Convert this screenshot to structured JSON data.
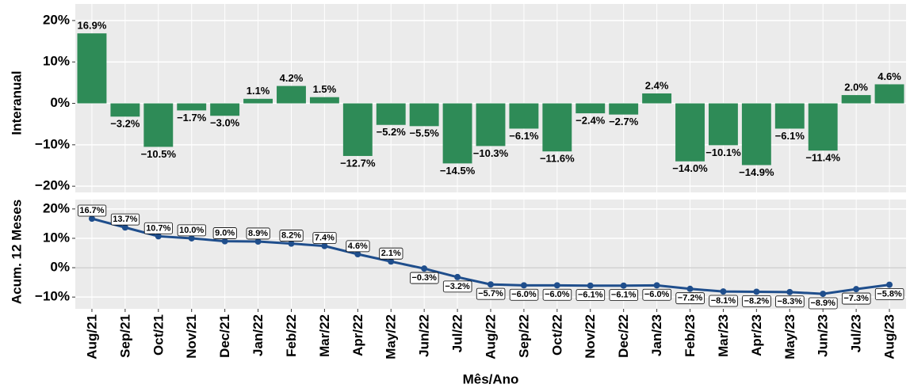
{
  "chart_data": [
    {
      "type": "bar",
      "ylabel": "Interanual",
      "color": "#2e8b57",
      "grid": true,
      "values": [
        16.9,
        -3.2,
        -10.5,
        -1.7,
        -3.0,
        1.1,
        4.2,
        1.5,
        -12.7,
        -5.2,
        -5.5,
        -14.5,
        -10.3,
        -6.1,
        -11.6,
        -2.4,
        -2.7,
        2.4,
        -14.0,
        -10.1,
        -14.9,
        -6.1,
        -11.4,
        2.0,
        4.6
      ],
      "value_labels": [
        "16.9%",
        "−3.2%",
        "−10.5%",
        "−1.7%",
        "−3.0%",
        "1.1%",
        "4.2%",
        "1.5%",
        "−12.7%",
        "−5.2%",
        "−5.5%",
        "−14.5%",
        "−10.3%",
        "−6.1%",
        "−11.6%",
        "−2.4%",
        "−2.7%",
        "2.4%",
        "−14.0%",
        "−10.1%",
        "−14.9%",
        "−6.1%",
        "−11.4%",
        "2.0%",
        "4.6%"
      ],
      "ylim": [
        -21.5,
        24
      ],
      "yticks": [
        {
          "value": -20,
          "label": "−20%"
        },
        {
          "value": -10,
          "label": "−10%"
        },
        {
          "value": 0,
          "label": "0%"
        },
        {
          "value": 10,
          "label": "10%"
        },
        {
          "value": 20,
          "label": "20%"
        }
      ]
    },
    {
      "type": "line",
      "ylabel": "Acum. 12 Meses",
      "xlabel": "Mês/Ano",
      "color": "#1f4e8c",
      "grid": true,
      "categories": [
        "Aug/21",
        "Sep/21",
        "Oct/21",
        "Nov/21",
        "Dec/21",
        "Jan/22",
        "Feb/22",
        "Mar/22",
        "Apr/22",
        "May/22",
        "Jun/22",
        "Jul/22",
        "Aug/22",
        "Sep/22",
        "Oct/22",
        "Nov/22",
        "Dec/22",
        "Jan/23",
        "Feb/23",
        "Mar/23",
        "Apr/23",
        "May/23",
        "Jun/23",
        "Jul/23",
        "Aug/23"
      ],
      "values": [
        16.7,
        13.7,
        10.7,
        10.0,
        9.0,
        8.9,
        8.2,
        7.4,
        4.6,
        2.1,
        -0.3,
        -3.2,
        -5.7,
        -6.0,
        -6.0,
        -6.1,
        -6.1,
        -6.0,
        -7.2,
        -8.1,
        -8.2,
        -8.3,
        -8.9,
        -7.3,
        -5.8
      ],
      "value_labels": [
        "16.7%",
        "13.7%",
        "10.7%",
        "10.0%",
        "9.0%",
        "8.9%",
        "8.2%",
        "7.4%",
        "4.6%",
        "2.1%",
        "−0.3%",
        "−3.2%",
        "−5.7%",
        "−6.0%",
        "−6.0%",
        "−6.1%",
        "−6.1%",
        "−6.0%",
        "−7.2%",
        "−8.1%",
        "−8.2%",
        "−8.3%",
        "−8.9%",
        "−7.3%",
        "−5.8%"
      ],
      "ylim": [
        -14,
        23.2
      ],
      "yticks": [
        {
          "value": -10,
          "label": "−10%"
        },
        {
          "value": 0,
          "label": "0%"
        },
        {
          "value": 10,
          "label": "10%"
        },
        {
          "value": 20,
          "label": "20%"
        }
      ]
    }
  ]
}
